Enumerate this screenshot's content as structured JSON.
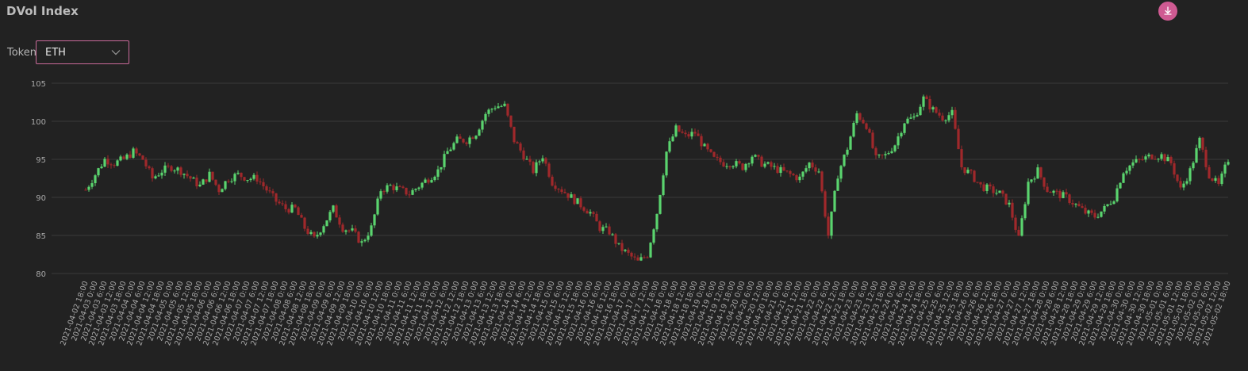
{
  "title": "DVol Index",
  "token_label": "Token",
  "token_selected": "ETH",
  "icons": {
    "download": "download-icon",
    "caret": "chevron-down-icon"
  },
  "colors": {
    "up": "#5ad46e",
    "down": "#a0282b",
    "accent": "#cf5a92"
  },
  "chart_data": {
    "type": "candlestick",
    "title": "",
    "xlabel": "",
    "ylabel": "",
    "ylim": [
      80,
      105
    ],
    "y_ticks": [
      80,
      85,
      90,
      95,
      100,
      105
    ],
    "grid": true,
    "x_tick_labels": [
      "2021-04-02 18:00",
      "2021-04-03 0:00",
      "2021-04-03 6:00",
      "2021-04-03 12:00",
      "2021-04-03 18:00",
      "2021-04-04 0:00",
      "2021-04-04 6:00",
      "2021-04-04 12:00",
      "2021-04-04 18:00",
      "2021-04-05 0:00",
      "2021-04-05 6:00",
      "2021-04-05 12:00",
      "2021-04-05 18:00",
      "2021-04-06 0:00",
      "2021-04-06 6:00",
      "2021-04-06 12:00",
      "2021-04-06 18:00",
      "2021-04-07 0:00",
      "2021-04-07 6:00",
      "2021-04-07 12:00",
      "2021-04-07 18:00",
      "2021-04-08 0:00",
      "2021-04-08 6:00",
      "2021-04-08 12:00",
      "2021-04-08 18:00",
      "2021-04-09 0:00",
      "2021-04-09 6:00",
      "2021-04-09 12:00",
      "2021-04-09 18:00",
      "2021-04-10 0:00",
      "2021-04-10 6:00",
      "2021-04-10 12:00",
      "2021-04-10 18:00",
      "2021-04-11 0:00",
      "2021-04-11 6:00",
      "2021-04-11 12:00",
      "2021-04-11 18:00",
      "2021-04-12 0:00",
      "2021-04-12 6:00",
      "2021-04-12 12:00",
      "2021-04-12 18:00",
      "2021-04-13 0:00",
      "2021-04-13 6:00",
      "2021-04-13 12:00",
      "2021-04-13 18:00",
      "2021-04-14 0:00",
      "2021-04-14 6:00",
      "2021-04-14 12:00",
      "2021-04-14 18:00",
      "2021-04-15 0:00",
      "2021-04-15 6:00",
      "2021-04-15 12:00",
      "2021-04-15 18:00",
      "2021-04-16 0:00",
      "2021-04-16 6:00",
      "2021-04-16 12:00",
      "2021-04-16 18:00",
      "2021-04-17 0:00",
      "2021-04-17 6:00",
      "2021-04-17 12:00",
      "2021-04-17 18:00",
      "2021-04-18 0:00",
      "2021-04-18 6:00",
      "2021-04-18 12:00",
      "2021-04-18 18:00",
      "2021-04-19 0:00",
      "2021-04-19 6:00",
      "2021-04-19 12:00",
      "2021-04-19 18:00",
      "2021-04-20 0:00",
      "2021-04-20 6:00",
      "2021-04-20 12:00",
      "2021-04-20 18:00",
      "2021-04-21 0:00",
      "2021-04-21 6:00",
      "2021-04-21 12:00",
      "2021-04-21 18:00",
      "2021-04-22 0:00",
      "2021-04-22 6:00",
      "2021-04-22 12:00",
      "2021-04-22 18:00",
      "2021-04-23 0:00",
      "2021-04-23 6:00",
      "2021-04-23 12:00",
      "2021-04-23 18:00",
      "2021-04-24 0:00",
      "2021-04-24 6:00",
      "2021-04-24 12:00",
      "2021-04-24 18:00",
      "2021-04-25 0:00",
      "2021-04-25 6:00",
      "2021-04-25 12:00",
      "2021-04-25 18:00",
      "2021-04-26 0:00",
      "2021-04-26 6:00",
      "2021-04-26 12:00",
      "2021-04-26 18:00",
      "2021-04-27 0:00",
      "2021-04-27 6:00",
      "2021-04-27 12:00",
      "2021-04-27 18:00",
      "2021-04-28 0:00",
      "2021-04-28 6:00",
      "2021-04-28 12:00",
      "2021-04-28 18:00",
      "2021-04-29 0:00",
      "2021-04-29 6:00",
      "2021-04-29 12:00",
      "2021-04-29 18:00",
      "2021-04-30 0:00",
      "2021-04-30 6:00",
      "2021-04-30 12:00",
      "2021-04-30 18:00",
      "2021-05-01 0:00",
      "2021-05-01 6:00",
      "2021-05-01 12:00",
      "2021-05-01 18:00",
      "2021-05-02 0:00",
      "2021-05-02 6:00",
      "2021-05-02 12:00",
      "2021-05-02 18:00"
    ],
    "anchor_x": [
      0,
      1,
      2,
      3,
      4,
      5,
      6,
      7,
      8,
      9,
      10,
      11,
      12,
      13,
      14,
      15,
      16,
      17,
      18,
      19,
      20,
      21,
      22,
      23,
      24,
      25,
      26,
      27,
      28,
      29,
      30,
      31,
      32,
      33,
      34,
      35,
      36,
      37,
      38,
      39,
      40,
      41,
      42,
      43,
      44,
      45,
      46,
      47,
      48,
      49,
      50,
      51,
      52,
      53,
      54,
      55,
      56,
      57,
      58,
      59,
      60,
      61,
      62,
      63,
      64,
      65,
      66,
      67,
      68,
      69,
      70,
      71,
      72,
      73,
      74,
      75,
      76,
      77,
      78,
      79,
      80,
      81,
      82,
      83,
      84,
      85,
      86,
      87,
      88,
      89,
      90,
      91,
      92,
      93,
      94,
      95,
      96,
      97,
      98,
      99,
      100,
      101,
      102,
      103,
      104,
      105,
      106,
      107,
      108,
      109,
      110,
      111,
      112,
      113,
      114,
      115,
      116,
      117,
      118,
      119,
      120
    ],
    "series": [
      {
        "values": [
          91,
          93,
          95,
          94.5,
          95,
          96,
          95,
          92.5,
          93.5,
          94,
          93.5,
          92.5,
          91.5,
          93,
          91,
          92.5,
          93,
          92.5,
          92.5,
          91,
          89.5,
          88.5,
          88.5,
          86,
          84.5,
          86.5,
          88.5,
          86,
          85.5,
          84,
          86,
          91,
          91.5,
          91,
          90.5,
          91.5,
          92.5,
          93.5,
          96,
          97.5,
          97.5,
          98.5,
          101,
          102,
          102,
          97.5,
          95.5,
          93.5,
          95.5,
          92,
          91,
          90,
          89,
          88,
          86,
          85.5,
          83.5,
          82.5,
          81.5,
          82.5,
          88,
          96,
          99,
          98,
          98.5,
          96.5,
          95,
          94.5,
          94.5,
          94,
          95.5,
          94.5,
          94,
          93.5,
          93,
          92.5,
          94.5,
          93.5,
          85,
          93,
          96.5,
          101,
          99.5,
          95,
          95.5,
          97,
          100,
          100.5,
          103,
          101.5,
          100.5,
          101,
          94,
          93,
          91.5,
          91,
          90.5,
          89,
          84.5,
          92,
          93.5,
          91,
          90.5,
          90,
          89,
          88,
          87.5,
          88.5,
          90,
          93.5,
          94.5,
          95,
          95.5,
          95.5,
          94.5,
          91,
          93.5,
          97.5,
          93,
          91.5,
          95,
          96.5
        ]
      }
    ]
  }
}
